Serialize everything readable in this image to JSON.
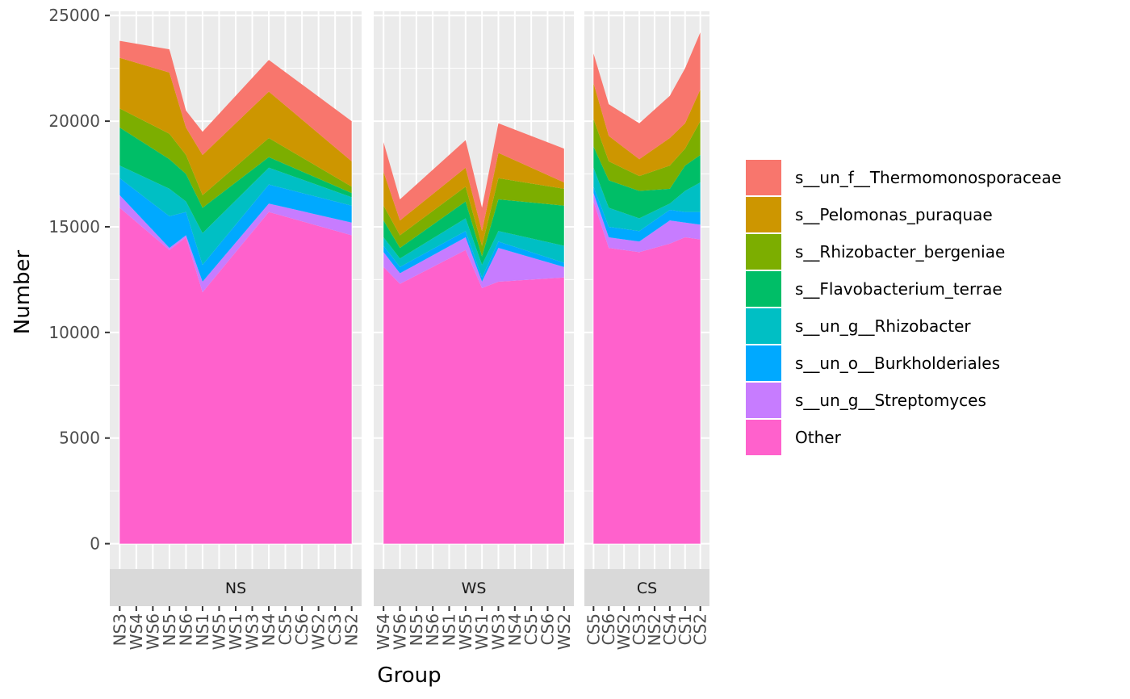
{
  "chart_data": {
    "type": "area",
    "stacked": true,
    "facet_by": "group",
    "xlabel": "Group",
    "ylabel": "Number",
    "ylim": [
      -1200,
      25200
    ],
    "yticks": [
      0,
      5000,
      10000,
      15000,
      20000,
      25000
    ],
    "grid": true,
    "legend_position": "right",
    "series": [
      {
        "name": "Other",
        "color": "#FF61CC"
      },
      {
        "name": "s__un_g__Streptomyces",
        "color": "#C77CFF"
      },
      {
        "name": "s__un_o__Burkholderiales",
        "color": "#00A9FF"
      },
      {
        "name": "s__un_g__Rhizobacter",
        "color": "#00BFC4"
      },
      {
        "name": "s__Flavobacterium_terrae",
        "color": "#00BE67"
      },
      {
        "name": "s__Rhizobacter_bergeniae",
        "color": "#7CAE00"
      },
      {
        "name": "s__Pelomonas_puraquae",
        "color": "#CD9600"
      },
      {
        "name": "s__un_f__Thermomonosporaceae",
        "color": "#F8766D"
      }
    ],
    "legend_order": [
      "s__un_f__Thermomonosporaceae",
      "s__Pelomonas_puraquae",
      "s__Rhizobacter_bergeniae",
      "s__Flavobacterium_terrae",
      "s__un_g__Rhizobacter",
      "s__un_o__Burkholderiales",
      "s__un_g__Streptomyces",
      "Other"
    ],
    "facets": [
      {
        "label": "NS",
        "categories": [
          "NS3",
          "WS4",
          "WS6",
          "NS5",
          "NS6",
          "NS1",
          "WS5",
          "WS1",
          "WS3",
          "NS4",
          "CS5",
          "CS6",
          "WS2",
          "CS3",
          "NS2"
        ],
        "points": [
          {
            "x": 0,
            "values": [
              15900,
              600,
              800,
              600,
              1800,
              900,
              2400,
              800
            ]
          },
          {
            "x": 3,
            "values": [
              13900,
              100,
              1500,
              1300,
              1400,
              1200,
              2900,
              1100
            ]
          },
          {
            "x": 4,
            "values": [
              14500,
              100,
              1100,
              500,
              1300,
              900,
              1300,
              800
            ]
          },
          {
            "x": 5,
            "values": [
              11900,
              500,
              800,
              1500,
              1200,
              600,
              1900,
              1100
            ]
          },
          {
            "x": 9,
            "values": [
              15700,
              400,
              900,
              800,
              500,
              900,
              2200,
              1500
            ]
          },
          {
            "x": 14,
            "values": [
              14600,
              600,
              800,
              400,
              200,
              300,
              1200,
              1900
            ]
          }
        ]
      },
      {
        "label": "WS",
        "categories": [
          "WS4",
          "WS6",
          "NS5",
          "NS6",
          "NS1",
          "WS5",
          "WS1",
          "WS3",
          "NS4",
          "CS5",
          "CS6",
          "WS2"
        ],
        "points": [
          {
            "x": 0,
            "values": [
              13100,
              700,
              300,
              400,
              800,
              700,
              1600,
              1400
            ]
          },
          {
            "x": 1,
            "values": [
              12300,
              500,
              300,
              400,
              500,
              600,
              700,
              1000
            ]
          },
          {
            "x": 5,
            "values": [
              13900,
              600,
              300,
              600,
              800,
              700,
              900,
              1300
            ]
          },
          {
            "x": 6,
            "values": [
              12100,
              300,
              200,
              600,
              400,
              500,
              700,
              1100
            ]
          },
          {
            "x": 7,
            "values": [
              12400,
              1600,
              300,
              500,
              1500,
              1000,
              1200,
              1400
            ]
          },
          {
            "x": 11,
            "values": [
              12600,
              500,
              200,
              800,
              1900,
              800,
              300,
              1600
            ]
          }
        ]
      },
      {
        "label": "CS",
        "categories": [
          "CS5",
          "CS6",
          "WS2",
          "CS3",
          "NS2",
          "CS4",
          "CS1",
          "CS2"
        ],
        "points": [
          {
            "x": 0,
            "values": [
              16200,
              400,
              300,
              900,
              1000,
              1300,
              1700,
              1400
            ]
          },
          {
            "x": 1,
            "values": [
              14000,
              500,
              500,
              900,
              1300,
              900,
              1200,
              1500
            ]
          },
          {
            "x": 3,
            "values": [
              13800,
              500,
              500,
              600,
              1300,
              700,
              800,
              1700
            ]
          },
          {
            "x": 5,
            "values": [
              14200,
              1100,
              500,
              300,
              700,
              1100,
              1300,
              2000
            ]
          },
          {
            "x": 6,
            "values": [
              14500,
              700,
              500,
              1000,
              1200,
              800,
              1200,
              2600
            ]
          },
          {
            "x": 7,
            "values": [
              14400,
              700,
              600,
              1400,
              1300,
              1600,
              1500,
              2700
            ]
          }
        ]
      }
    ]
  }
}
